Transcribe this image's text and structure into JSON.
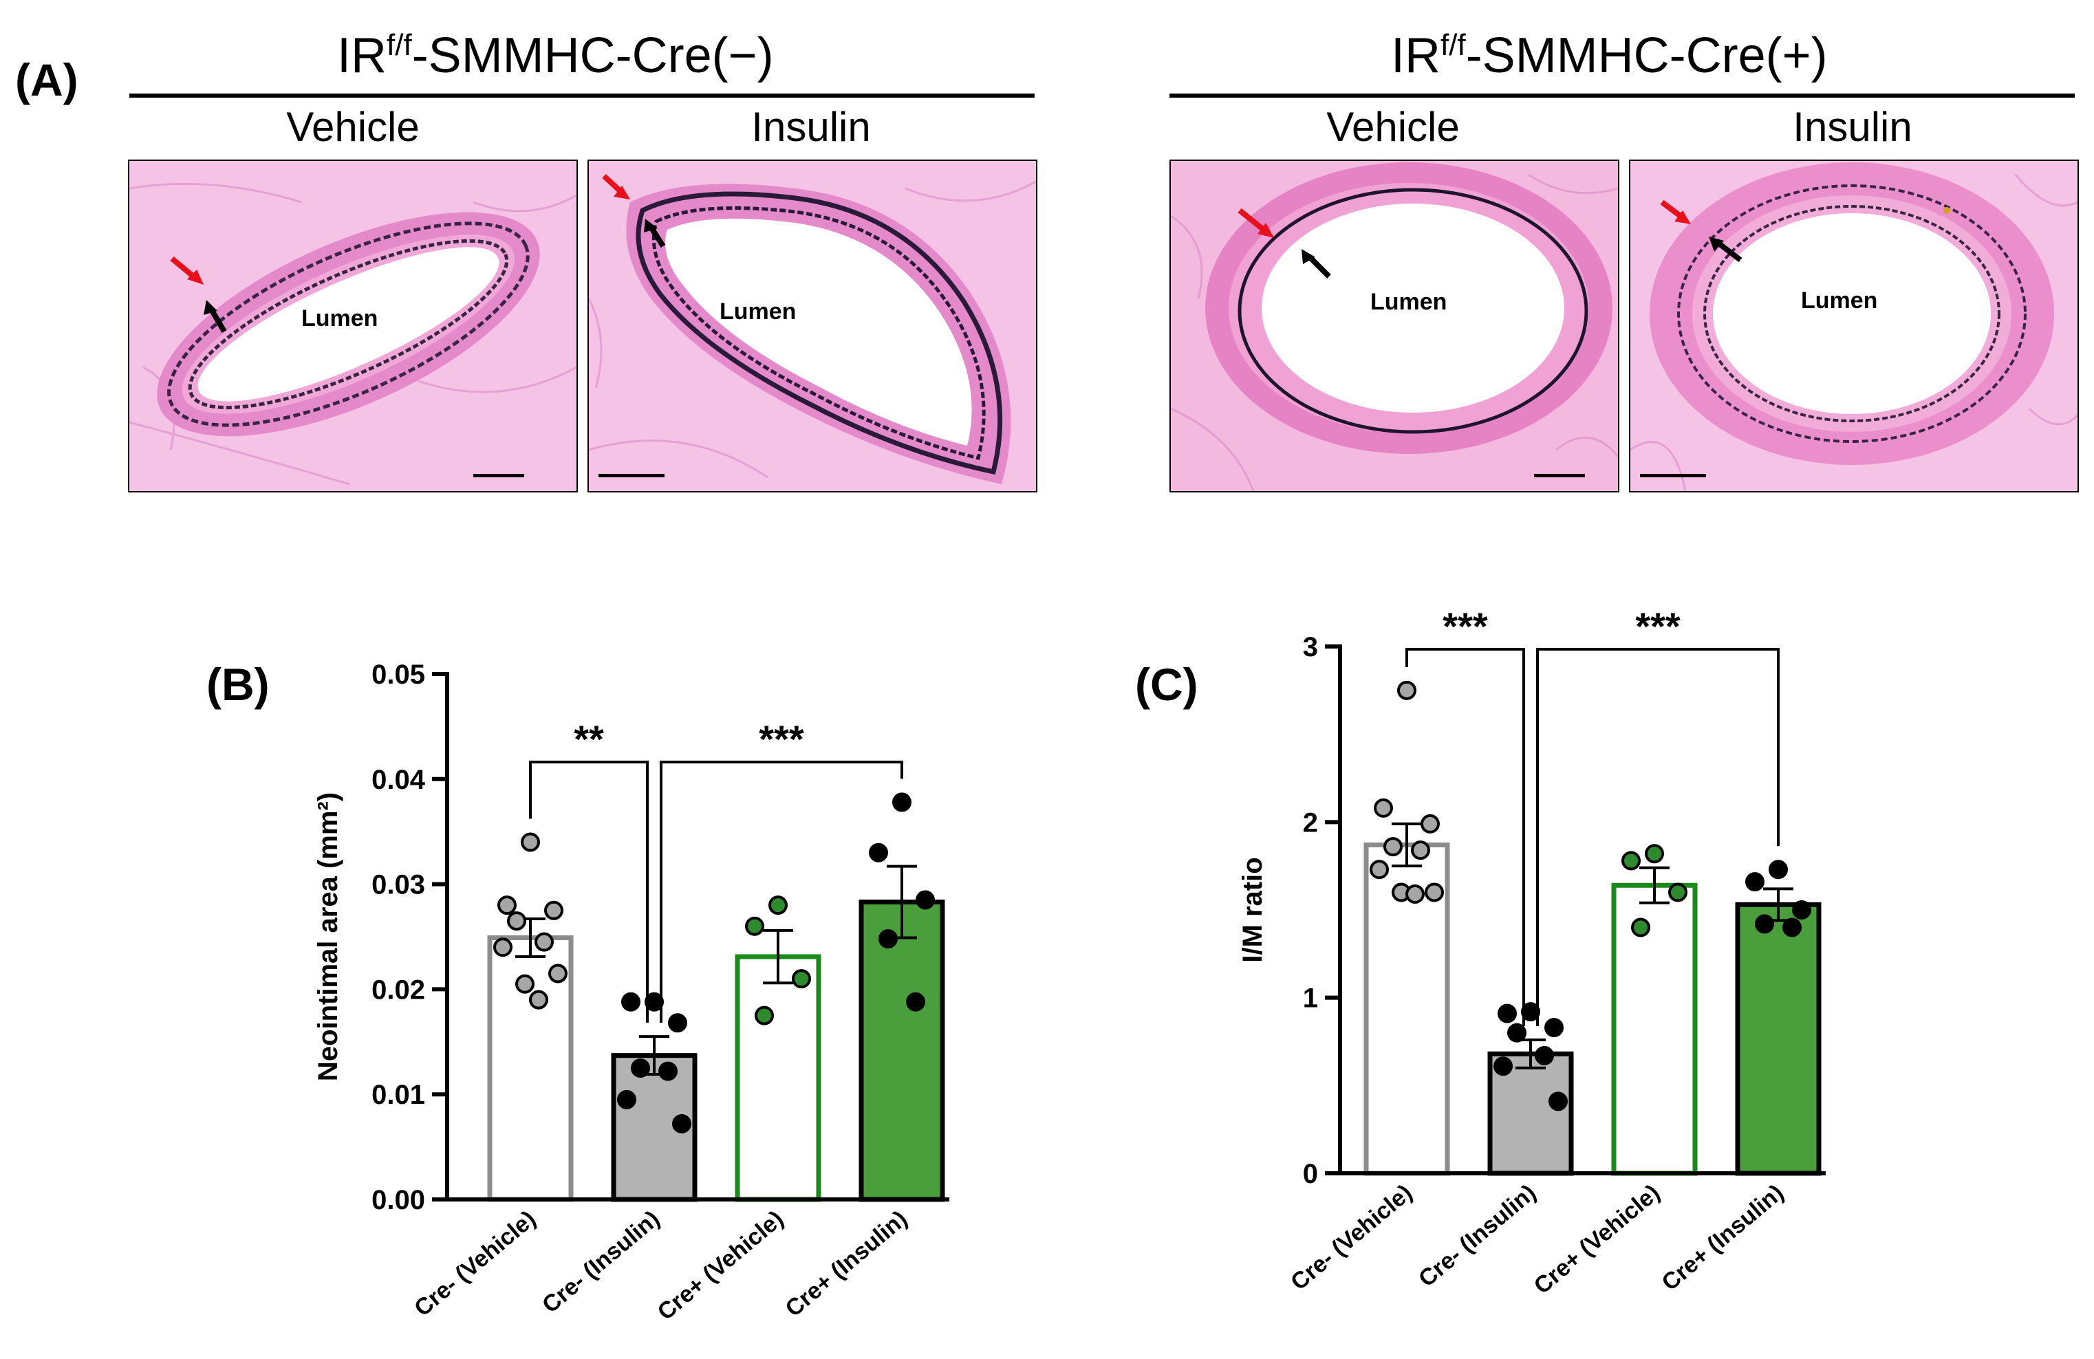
{
  "panel_a": {
    "label": "(A)",
    "groups": [
      {
        "title_prefix": "IR",
        "title_sup": "f/f",
        "title_suffix": "-SMMHC-Cre(−)",
        "columns": [
          "Vehicle",
          "Insulin"
        ]
      },
      {
        "title_prefix": "IR",
        "title_sup": "f/f",
        "title_suffix": "-SMMHC-Cre(+)",
        "columns": [
          "Vehicle",
          "Insulin"
        ]
      }
    ],
    "lumen_label": "Lumen",
    "colors": {
      "tissue": "#f2b4de",
      "wall": "#e07cc4",
      "elastic": "#2a1a3a",
      "red_arrow": "#e8101a",
      "black_arrow": "#000000"
    }
  },
  "chart_data": [
    {
      "panel": "(B)",
      "type": "bar",
      "ylabel": "Neointimal area (mm²)",
      "ylim": [
        0,
        0.05
      ],
      "yticks": [
        0,
        0.01,
        0.02,
        0.03,
        0.04,
        0.05
      ],
      "ytick_labels": [
        "0.00",
        "0.01",
        "0.02",
        "0.03",
        "0.04",
        "0.05"
      ],
      "categories": [
        "Cre- (Vehicle)",
        "Cre- (Insulin)",
        "Cre+ (Vehicle)",
        "Cre+ (Insulin)"
      ],
      "means": [
        0.0249,
        0.0137,
        0.0231,
        0.0283
      ],
      "sem": [
        0.0018,
        0.0018,
        0.0025,
        0.0034
      ],
      "points": [
        [
          0.034,
          0.028,
          0.0275,
          0.0265,
          0.0245,
          0.024,
          0.0215,
          0.0205,
          0.019
        ],
        [
          0.0188,
          0.0188,
          0.0168,
          0.0125,
          0.0122,
          0.0095,
          0.0072
        ],
        [
          0.028,
          0.026,
          0.021,
          0.0175
        ],
        [
          0.0378,
          0.033,
          0.0285,
          0.0248,
          0.0188
        ]
      ],
      "bar_fill": [
        "#ffffff",
        "#b3b3b3",
        "#ffffff",
        "#4b9e3c"
      ],
      "bar_stroke": [
        "#8c8c8c",
        "#000000",
        "#1a8a1a",
        "#000000"
      ],
      "point_fill": [
        "#a6a6a6",
        "#000000",
        "#2d8a2d",
        "#000000"
      ],
      "significance": [
        {
          "from": 0,
          "to": 1,
          "label": "**"
        },
        {
          "from": 1,
          "to": 3,
          "label": "***"
        }
      ]
    },
    {
      "panel": "(C)",
      "type": "bar",
      "ylabel": "I/M ratio",
      "ylim": [
        0,
        3
      ],
      "yticks": [
        0,
        1,
        2,
        3
      ],
      "ytick_labels": [
        "0",
        "1",
        "2",
        "3"
      ],
      "categories": [
        "Cre- (Vehicle)",
        "Cre- (Insulin)",
        "Cre+ (Vehicle)",
        "Cre+ (Insulin)"
      ],
      "means": [
        1.87,
        0.68,
        1.64,
        1.53
      ],
      "sem": [
        0.12,
        0.08,
        0.1,
        0.09
      ],
      "points": [
        [
          2.75,
          2.08,
          1.99,
          1.86,
          1.84,
          1.73,
          1.6,
          1.6,
          1.59
        ],
        [
          0.92,
          0.91,
          0.83,
          0.8,
          0.67,
          0.61,
          0.41
        ],
        [
          1.82,
          1.78,
          1.6,
          1.4
        ],
        [
          1.73,
          1.66,
          1.5,
          1.42,
          1.4
        ]
      ],
      "bar_fill": [
        "#ffffff",
        "#b3b3b3",
        "#ffffff",
        "#4b9e3c"
      ],
      "bar_stroke": [
        "#8c8c8c",
        "#000000",
        "#1a8a1a",
        "#000000"
      ],
      "point_fill": [
        "#a6a6a6",
        "#000000",
        "#2d8a2d",
        "#000000"
      ],
      "significance": [
        {
          "from": 0,
          "to": 1,
          "label": "***"
        },
        {
          "from": 1,
          "to": 3,
          "label": "***"
        }
      ]
    }
  ]
}
